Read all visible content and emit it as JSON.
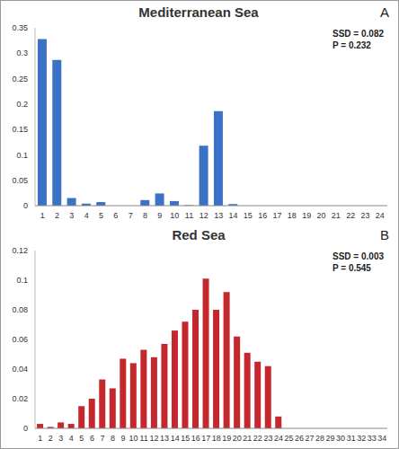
{
  "chart_data": [
    {
      "type": "bar",
      "title": "Mediterranean Sea",
      "panel_label": "A",
      "annotations": [
        "SSD = 0.082",
        "P = 0.232"
      ],
      "categories": [
        "1",
        "2",
        "3",
        "4",
        "5",
        "6",
        "7",
        "8",
        "9",
        "10",
        "11",
        "12",
        "13",
        "14",
        "15",
        "16",
        "17",
        "18",
        "19",
        "20",
        "21",
        "22",
        "23",
        "24"
      ],
      "values": [
        0.328,
        0.287,
        0.015,
        0.004,
        0.007,
        0,
        0,
        0.011,
        0.024,
        0.009,
        0.001,
        0.118,
        0.186,
        0.003,
        0,
        0,
        0,
        0,
        0,
        0,
        0,
        0,
        0,
        0
      ],
      "color": "#3b72c6",
      "ylim": [
        0,
        0.35
      ],
      "yticks": [
        0,
        0.05,
        0.1,
        0.15,
        0.2,
        0.25,
        0.3,
        0.35
      ],
      "grid": false
    },
    {
      "type": "bar",
      "title": "Red Sea",
      "panel_label": "B",
      "annotations": [
        "SSD = 0.003",
        "P = 0.545"
      ],
      "categories": [
        "1",
        "2",
        "3",
        "4",
        "5",
        "6",
        "7",
        "8",
        "9",
        "10",
        "11",
        "12",
        "13",
        "14",
        "15",
        "16",
        "17",
        "18",
        "19",
        "20",
        "21",
        "22",
        "23",
        "24",
        "25",
        "26",
        "27",
        "28",
        "29",
        "30",
        "31",
        "32",
        "33",
        "34"
      ],
      "values": [
        0.003,
        0.001,
        0.004,
        0.003,
        0.015,
        0.02,
        0.033,
        0.027,
        0.047,
        0.044,
        0.053,
        0.048,
        0.057,
        0.066,
        0.072,
        0.08,
        0.101,
        0.08,
        0.092,
        0.062,
        0.051,
        0.045,
        0.042,
        0.008,
        0,
        0,
        0,
        0,
        0,
        0,
        0,
        0,
        0,
        0
      ],
      "color": "#c4282d",
      "ylim": [
        0,
        0.12
      ],
      "yticks": [
        0,
        0.02,
        0.04,
        0.06,
        0.08,
        0.1,
        0.12
      ],
      "grid": false
    }
  ]
}
